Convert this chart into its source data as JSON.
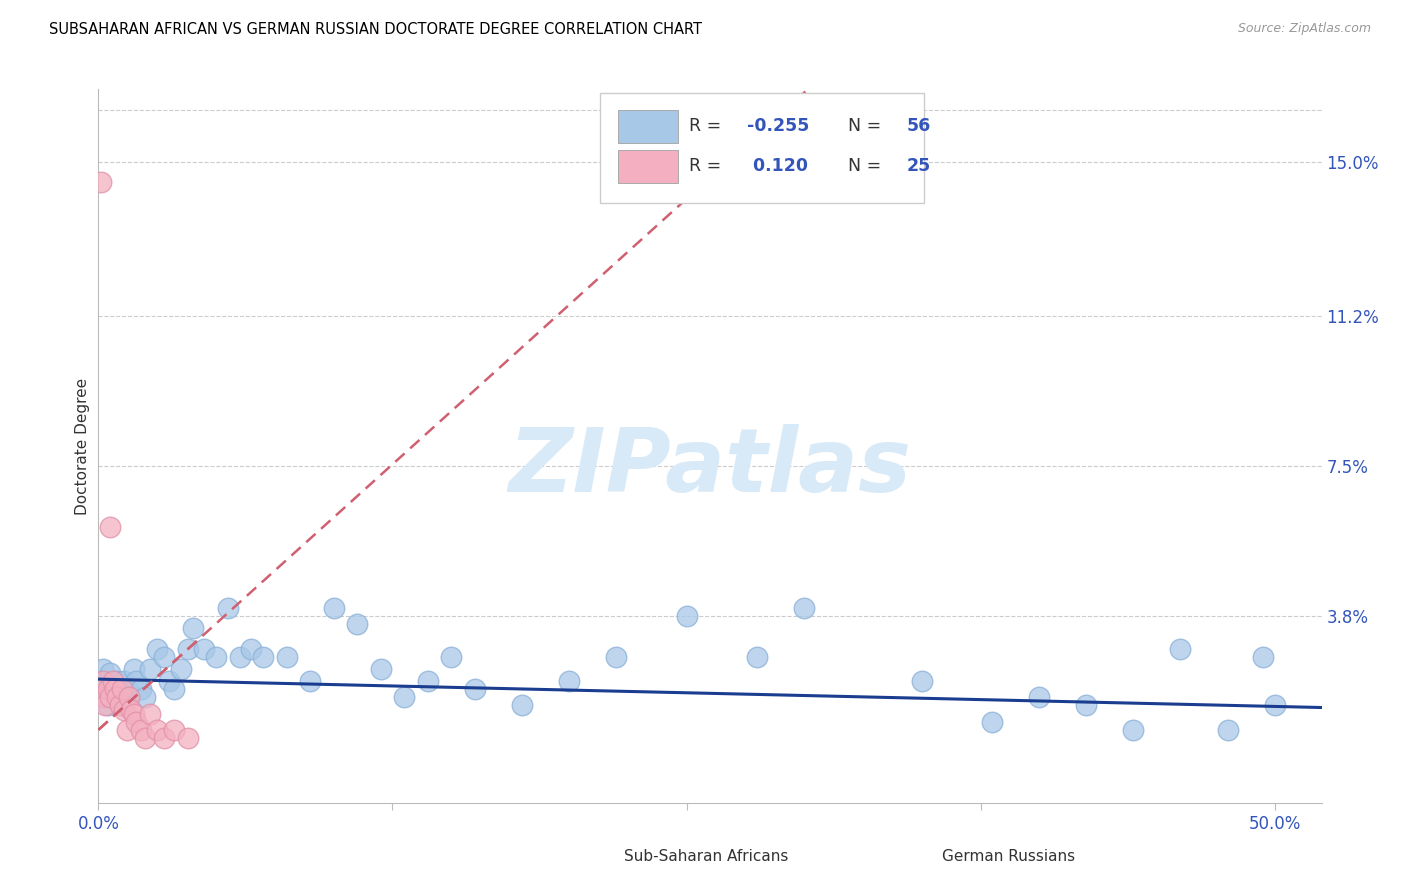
{
  "title": "SUBSAHARAN AFRICAN VS GERMAN RUSSIAN DOCTORATE DEGREE CORRELATION CHART",
  "source": "Source: ZipAtlas.com",
  "ylabel": "Doctorate Degree",
  "ytick_labels": [
    "15.0%",
    "11.2%",
    "7.5%",
    "3.8%"
  ],
  "ytick_values": [
    0.15,
    0.112,
    0.075,
    0.038
  ],
  "xlim": [
    0.0,
    0.52
  ],
  "ylim": [
    -0.008,
    0.168
  ],
  "legend1_color": "#a8c8e8",
  "legend2_color": "#f4b0c0",
  "blue_scatter_color": "#a8c8e8",
  "pink_scatter_color": "#f4b0c0",
  "blue_line_color": "#1a3d8f",
  "pink_line_color": "#d06070",
  "watermark_text": "ZIPatlas",
  "watermark_color": "#d8eaf8",
  "blue_x": [
    0.001,
    0.002,
    0.002,
    0.003,
    0.004,
    0.005,
    0.006,
    0.007,
    0.008,
    0.009,
    0.01,
    0.011,
    0.012,
    0.013,
    0.015,
    0.016,
    0.018,
    0.02,
    0.022,
    0.025,
    0.028,
    0.03,
    0.032,
    0.035,
    0.038,
    0.04,
    0.045,
    0.05,
    0.055,
    0.06,
    0.065,
    0.07,
    0.08,
    0.09,
    0.1,
    0.11,
    0.12,
    0.13,
    0.14,
    0.15,
    0.16,
    0.18,
    0.2,
    0.22,
    0.25,
    0.28,
    0.3,
    0.35,
    0.38,
    0.4,
    0.42,
    0.44,
    0.46,
    0.48,
    0.495,
    0.5
  ],
  "blue_y": [
    0.022,
    0.025,
    0.018,
    0.02,
    0.016,
    0.024,
    0.02,
    0.018,
    0.022,
    0.02,
    0.016,
    0.022,
    0.02,
    0.018,
    0.025,
    0.022,
    0.02,
    0.018,
    0.025,
    0.03,
    0.028,
    0.022,
    0.02,
    0.025,
    0.03,
    0.035,
    0.03,
    0.028,
    0.04,
    0.028,
    0.03,
    0.028,
    0.028,
    0.022,
    0.04,
    0.036,
    0.025,
    0.018,
    0.022,
    0.028,
    0.02,
    0.016,
    0.022,
    0.028,
    0.038,
    0.028,
    0.04,
    0.022,
    0.012,
    0.018,
    0.016,
    0.01,
    0.03,
    0.01,
    0.028,
    0.016
  ],
  "pink_x": [
    0.001,
    0.002,
    0.003,
    0.003,
    0.004,
    0.005,
    0.005,
    0.006,
    0.007,
    0.008,
    0.009,
    0.01,
    0.011,
    0.012,
    0.013,
    0.014,
    0.015,
    0.016,
    0.018,
    0.02,
    0.022,
    0.025,
    0.028,
    0.032,
    0.038
  ],
  "pink_y": [
    0.145,
    0.022,
    0.018,
    0.016,
    0.02,
    0.06,
    0.018,
    0.022,
    0.02,
    0.018,
    0.016,
    0.02,
    0.015,
    0.01,
    0.018,
    0.015,
    0.014,
    0.012,
    0.01,
    0.008,
    0.014,
    0.01,
    0.008,
    0.01,
    0.008
  ],
  "blue_line_x": [
    0.0,
    0.52
  ],
  "blue_line_y": [
    0.0225,
    0.0155
  ],
  "pink_line_x": [
    0.0,
    0.042
  ],
  "pink_line_y": [
    0.01,
    0.032
  ]
}
